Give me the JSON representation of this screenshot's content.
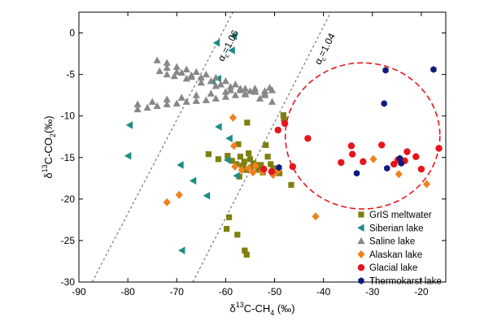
{
  "chart_data": {
    "type": "scatter",
    "xlabel": {
      "base": "δ",
      "sup": "13",
      "rest": "C-CH",
      "sub": "4",
      "unit": " (‰)"
    },
    "ylabel": {
      "base": "δ",
      "sup": "13",
      "rest": "C-CO",
      "sub": "2",
      "unit": "(‰)"
    },
    "xlim": [
      -90,
      -15
    ],
    "ylim": [
      -30,
      2.5
    ],
    "xticks": [
      -90,
      -80,
      -70,
      -60,
      -50,
      -40,
      -30,
      -20
    ],
    "yticks": [
      0,
      -5,
      -10,
      -15,
      -20,
      -25,
      -30
    ],
    "reference_lines": [
      {
        "label": "αc=1.06",
        "main": "α",
        "sub": "c",
        "tail": "=1.06",
        "points": [
          [
            -87.3,
            -30
          ],
          [
            -58.5,
            2.5
          ]
        ]
      },
      {
        "label": "αc=1.04",
        "main": "α",
        "sub": "c",
        "tail": "=1.04",
        "points": [
          [
            -66.7,
            -30
          ],
          [
            -38.5,
            2.5
          ]
        ]
      }
    ],
    "highlight_ellipse": {
      "cx": -32,
      "cy": -12.4,
      "rx": 15.8,
      "ry": 8.8,
      "color": "#e8141b"
    },
    "legend_position": "bottom-right",
    "series": [
      {
        "name": "GrIS meltwater",
        "marker": "square",
        "color": "#7f7f10",
        "points": [
          [
            -63.5,
            -14.6
          ],
          [
            -61.5,
            -15.2
          ],
          [
            -59.6,
            -14.8
          ],
          [
            -58.7,
            -15.4
          ],
          [
            -57.4,
            -13.4
          ],
          [
            -57,
            -14.9
          ],
          [
            -56.6,
            -16
          ],
          [
            -56.2,
            -15.5
          ],
          [
            -55.6,
            -10.8
          ],
          [
            -55.3,
            -14.5
          ],
          [
            -55,
            -15.2
          ],
          [
            -54.8,
            -16.2
          ],
          [
            -54.3,
            -15.7
          ],
          [
            -53.8,
            -15.9
          ],
          [
            -53.4,
            -16.3
          ],
          [
            -52.8,
            -15.9
          ],
          [
            -52.4,
            -16.8
          ],
          [
            -51.8,
            -13.5
          ],
          [
            -51.4,
            -14.9
          ],
          [
            -50.8,
            -15.8
          ],
          [
            -50.3,
            -16.3
          ],
          [
            -49.6,
            -16.6
          ],
          [
            -49,
            -16.9
          ],
          [
            -48.2,
            -9.9
          ],
          [
            -48.1,
            -10.4
          ],
          [
            -46.6,
            -18.3
          ],
          [
            -57.8,
            -15.8
          ],
          [
            -57.2,
            -17.3
          ],
          [
            -55.8,
            -16.5
          ],
          [
            -59.3,
            -22.2
          ],
          [
            -59.8,
            -23.6
          ],
          [
            -57.6,
            -24.3
          ],
          [
            -56.1,
            -26.2
          ],
          [
            -55.7,
            -26.7
          ],
          [
            -56.4,
            -16.1
          ],
          [
            -53.1,
            -16.5
          ]
        ]
      },
      {
        "name": "Siberian lake",
        "marker": "triangle-left",
        "color": "#1b8e86",
        "points": [
          [
            -58.3,
            -0.4
          ],
          [
            -61.8,
            -1.2
          ],
          [
            -58.7,
            -2.1
          ],
          [
            -61.5,
            -5.5
          ],
          [
            -62.7,
            -5.9
          ],
          [
            -61.4,
            -11.3
          ],
          [
            -59.2,
            -12.7
          ],
          [
            -79.6,
            -11.1
          ],
          [
            -79.9,
            -14.8
          ],
          [
            -69.2,
            -15.9
          ],
          [
            -59.6,
            -15.3
          ],
          [
            -57.7,
            -17.2
          ],
          [
            -66.6,
            -17.8
          ],
          [
            -63.8,
            -19.6
          ],
          [
            -68.9,
            -26.2
          ]
        ]
      },
      {
        "name": "Saline lake",
        "marker": "triangle-up",
        "color": "#888888",
        "points": [
          [
            -78,
            -9.2
          ],
          [
            -76,
            -9
          ],
          [
            -74,
            -8.8
          ],
          [
            -72,
            -8.6
          ],
          [
            -70,
            -8.5
          ],
          [
            -68,
            -8.3
          ],
          [
            -66,
            -8.2
          ],
          [
            -64,
            -8.1
          ],
          [
            -62,
            -7.9
          ],
          [
            -60,
            -7.7
          ],
          [
            -58,
            -7.5
          ],
          [
            -56,
            -7.3
          ],
          [
            -54,
            -7.1
          ],
          [
            -52,
            -7
          ],
          [
            -50.5,
            -6.9
          ],
          [
            -78,
            -8.6
          ],
          [
            -75,
            -8.3
          ],
          [
            -72,
            -8
          ],
          [
            -69,
            -7.8
          ],
          [
            -66,
            -7.5
          ],
          [
            -63,
            -7.3
          ],
          [
            -60,
            -7.1
          ],
          [
            -57,
            -6.9
          ],
          [
            -54,
            -6.7
          ],
          [
            -51,
            -6.6
          ],
          [
            -74,
            -3.3
          ],
          [
            -72,
            -3.6
          ],
          [
            -70,
            -4.1
          ],
          [
            -68,
            -4.4
          ],
          [
            -66,
            -4.7
          ],
          [
            -64,
            -5
          ],
          [
            -62,
            -5.4
          ],
          [
            -60,
            -5.8
          ],
          [
            -58,
            -6.2
          ],
          [
            -56,
            -6.7
          ],
          [
            -54,
            -7
          ],
          [
            -52,
            -7.3
          ],
          [
            -73.5,
            -4.6
          ],
          [
            -72,
            -5
          ],
          [
            -70.5,
            -5.2
          ],
          [
            -68,
            -5.5
          ],
          [
            -65,
            -6
          ],
          [
            -62,
            -6.4
          ],
          [
            -59,
            -6.9
          ],
          [
            -56,
            -7.4
          ],
          [
            -53,
            -7.9
          ],
          [
            -50.5,
            -8.3
          ],
          [
            -72,
            -4.2
          ],
          [
            -70,
            -4.7
          ],
          [
            -67,
            -5.1
          ],
          [
            -65,
            -5.4
          ],
          [
            -63,
            -5.8
          ],
          [
            -61,
            -6.2
          ],
          [
            -59,
            -6.5
          ],
          [
            -57,
            -6.7
          ],
          [
            -55,
            -7
          ],
          [
            -52,
            -7.5
          ],
          [
            -69,
            -4.8
          ],
          [
            -67,
            -5.3
          ]
        ]
      },
      {
        "name": "Alaskan lake",
        "marker": "diamond",
        "color": "#f0821e",
        "points": [
          [
            -72,
            -20.4
          ],
          [
            -69.5,
            -19.5
          ],
          [
            -58.5,
            -10.2
          ],
          [
            -58.3,
            -13.6
          ],
          [
            -58.1,
            -16.1
          ],
          [
            -56.7,
            -16.5
          ],
          [
            -55.3,
            -16.3
          ],
          [
            -54.4,
            -16.8
          ],
          [
            -53.9,
            -16
          ],
          [
            -52.5,
            -16.7
          ],
          [
            -50.3,
            -17.1
          ],
          [
            -49.3,
            -16.6
          ],
          [
            -41.6,
            -22.1
          ],
          [
            -29.8,
            -15.2
          ],
          [
            -24.6,
            -17
          ],
          [
            -24.1,
            -15.6
          ],
          [
            -18.9,
            -18.2
          ]
        ]
      },
      {
        "name": "Glacial lake",
        "marker": "circle",
        "color": "#e8141b",
        "points": [
          [
            -49.3,
            -11.7
          ],
          [
            -47.9,
            -10.9
          ],
          [
            -46.3,
            -16.1
          ],
          [
            -52.2,
            -16.4
          ],
          [
            -50.6,
            -16.7
          ],
          [
            -43.2,
            -12.7
          ],
          [
            -36.4,
            -15.6
          ],
          [
            -34.3,
            -13.6
          ],
          [
            -34.1,
            -14.6
          ],
          [
            -31.9,
            -15.5
          ],
          [
            -28.1,
            -13.5
          ],
          [
            -25.6,
            -15.8
          ],
          [
            -24.8,
            -15.3
          ],
          [
            -23.4,
            -15.4
          ],
          [
            -22.9,
            -14.3
          ],
          [
            -21.1,
            -14.9
          ],
          [
            -20,
            -16.4
          ],
          [
            -16.4,
            -13.9
          ]
        ]
      },
      {
        "name": "Thermokarst lake",
        "marker": "hexagon",
        "color": "#0d1a82",
        "points": [
          [
            -27.3,
            -4.5
          ],
          [
            -27.6,
            -8.5
          ],
          [
            -33.2,
            -16.9
          ],
          [
            -27,
            -16.3
          ],
          [
            -24.4,
            -15.1
          ],
          [
            -24.1,
            -15.7
          ],
          [
            -17.5,
            -4.4
          ],
          [
            -49.1,
            -16.2
          ]
        ]
      }
    ]
  }
}
